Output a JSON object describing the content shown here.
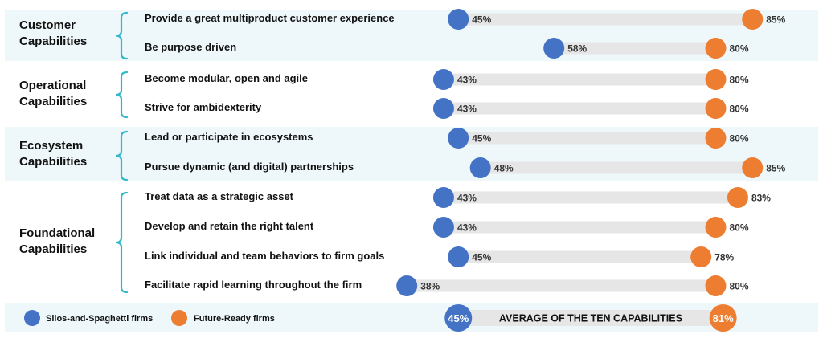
{
  "chart_data": {
    "type": "dumbbell",
    "xlim": [
      30,
      90
    ],
    "groups": [
      {
        "label_lines": [
          "Customer",
          "Capabilities"
        ],
        "rows": [
          {
            "label": "Provide a great multiproduct customer experience",
            "silos": 45,
            "future": 85
          },
          {
            "label": "Be purpose driven",
            "silos": 58,
            "future": 80
          }
        ]
      },
      {
        "label_lines": [
          "Operational",
          "Capabilities"
        ],
        "rows": [
          {
            "label": "Become modular, open and agile",
            "silos": 43,
            "future": 80
          },
          {
            "label": "Strive for ambidexterity",
            "silos": 43,
            "future": 80
          }
        ]
      },
      {
        "label_lines": [
          "Ecosystem",
          "Capabilities"
        ],
        "rows": [
          {
            "label": "Lead or participate in ecosystems",
            "silos": 45,
            "future": 80
          },
          {
            "label": "Pursue dynamic (and digital) partnerships",
            "silos": 48,
            "future": 85
          }
        ]
      },
      {
        "label_lines": [
          "Foundational",
          "Capabilities"
        ],
        "rows": [
          {
            "label": "Treat data as a strategic asset",
            "silos": 43,
            "future": 83
          },
          {
            "label": "Develop and retain the right talent",
            "silos": 43,
            "future": 80
          },
          {
            "label": "Link individual and team behaviors to firm goals",
            "silos": 45,
            "future": 78
          },
          {
            "label": "Facilitate rapid learning throughout the firm",
            "silos": 38,
            "future": 80
          }
        ]
      }
    ],
    "series": [
      {
        "name": "Silos-and-Spaghetti firms",
        "key": "silos",
        "color": "#4472c4"
      },
      {
        "name": "Future-Ready firms",
        "key": "future",
        "color": "#ed7d31"
      }
    ],
    "average": {
      "label": "AVERAGE OF THE TEN CAPABILITIES",
      "silos": 45,
      "future": 81
    },
    "value_suffix": "%"
  },
  "colors": {
    "silos": "#4472c4",
    "future": "#ed7d31",
    "track": "#e6e6e6",
    "band": "#eef8fb",
    "brace": "#33b8c9"
  }
}
